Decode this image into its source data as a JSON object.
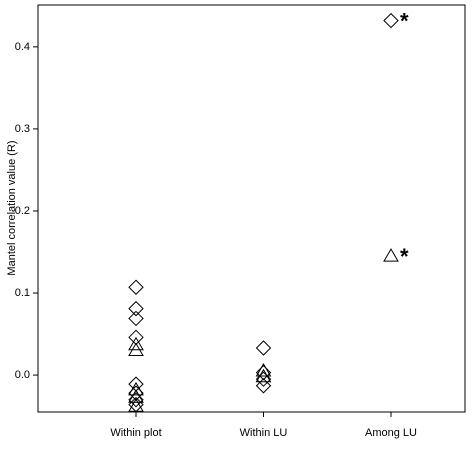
{
  "chart_data": {
    "type": "scatter",
    "y_label": "Mantel correlation value (R)",
    "categories": [
      "Within plot",
      "Within LU",
      "Among LU"
    ],
    "ylim": [
      -0.045,
      0.451
    ],
    "yticks": [
      {
        "value": 0,
        "label": "0.0"
      },
      0.1,
      0.2,
      0.3,
      0.4
    ],
    "series": [
      {
        "marker": "diamond",
        "color": "#000000",
        "x": [
          "Within plot",
          "Within plot",
          "Within plot",
          "Within plot",
          "Within plot",
          "Within plot",
          "Within plot",
          "Within plot",
          "Within LU",
          "Within LU",
          "Within LU",
          "Within LU",
          "Among LU"
        ],
        "values": [
          0.107,
          0.081,
          0.069,
          0.046,
          -0.011,
          -0.022,
          -0.03,
          -0.036,
          0.033,
          0.003,
          -0.005,
          -0.013,
          0.432
        ]
      },
      {
        "marker": "triangle",
        "color": "#000000",
        "x": [
          "Within plot",
          "Within plot",
          "Within plot",
          "Within plot",
          "Within plot",
          "Within LU",
          "Within LU",
          "Among LU"
        ],
        "values": [
          0.037,
          0.03,
          -0.018,
          -0.027,
          -0.038,
          0.005,
          -0.002,
          0.145
        ]
      }
    ],
    "annotations": [
      {
        "text": "*",
        "x": "Among LU",
        "y": 0.432
      },
      {
        "text": "*",
        "x": "Among LU",
        "y": 0.145
      }
    ]
  }
}
